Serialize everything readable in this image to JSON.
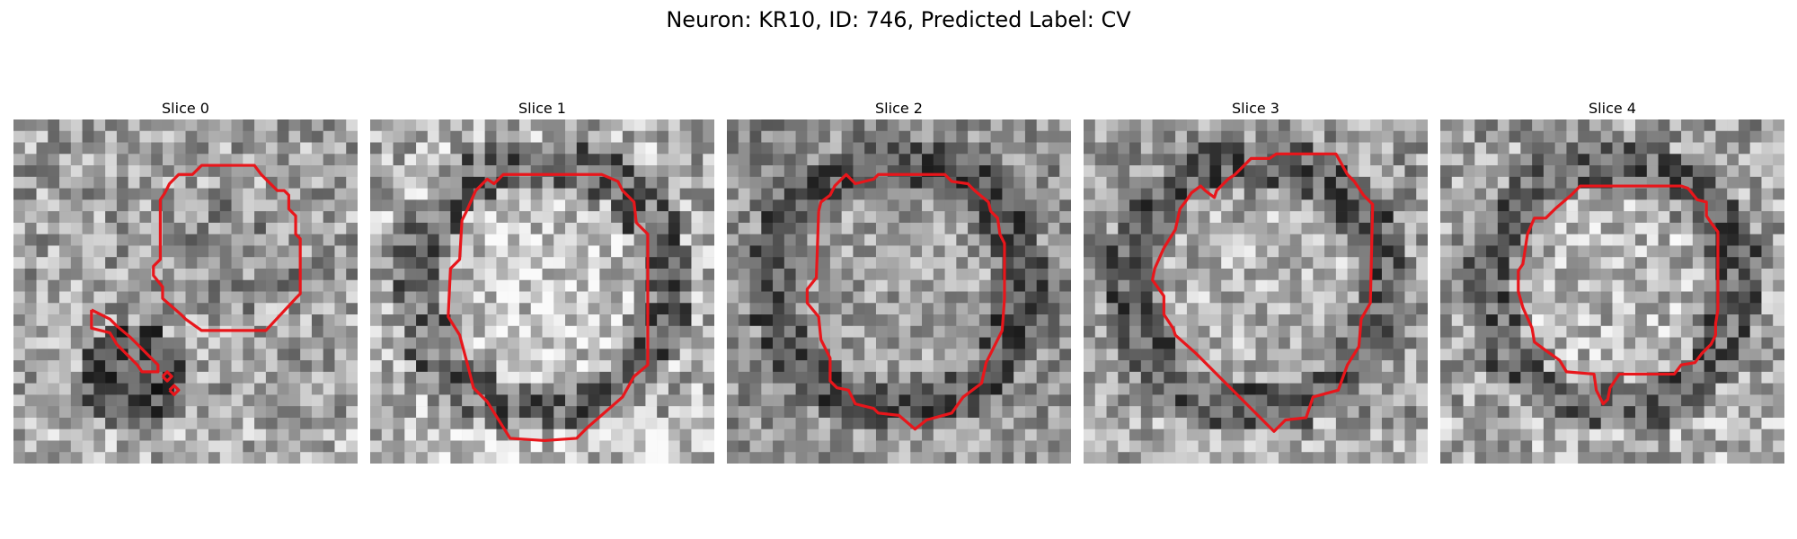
{
  "figure": {
    "title": "Neuron: KR10, ID: 746, Predicted Label: CV",
    "contour_color": "#e8161b"
  },
  "slices": [
    {
      "label": "Slice 0",
      "seed": 11,
      "bright": 1.15,
      "dark_ring": false,
      "dark_blob": true
    },
    {
      "label": "Slice 1",
      "seed": 23,
      "bright": 1.25,
      "dark_ring": true,
      "dark_blob": false
    },
    {
      "label": "Slice 2",
      "seed": 37,
      "bright": 1.0,
      "dark_ring": true,
      "dark_blob": false
    },
    {
      "label": "Slice 3",
      "seed": 51,
      "bright": 1.1,
      "dark_ring": true,
      "dark_blob": false
    },
    {
      "label": "Slice 4",
      "seed": 67,
      "bright": 1.15,
      "dark_ring": true,
      "dark_blob": false
    }
  ]
}
